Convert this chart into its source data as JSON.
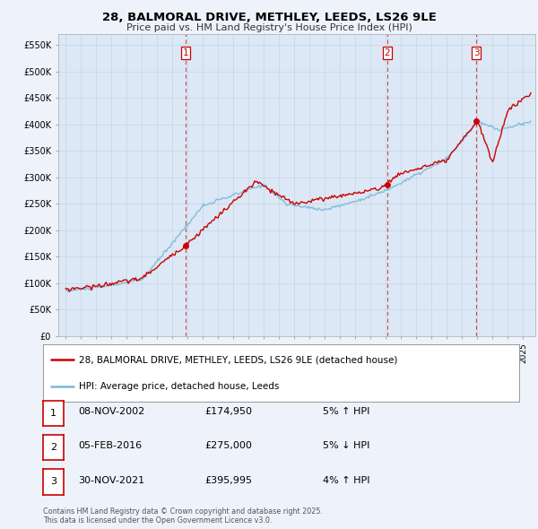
{
  "title": "28, BALMORAL DRIVE, METHLEY, LEEDS, LS26 9LE",
  "subtitle": "Price paid vs. HM Land Registry's House Price Index (HPI)",
  "ylabel_ticks": [
    "£0",
    "£50K",
    "£100K",
    "£150K",
    "£200K",
    "£250K",
    "£300K",
    "£350K",
    "£400K",
    "£450K",
    "£500K",
    "£550K"
  ],
  "ytick_values": [
    0,
    50000,
    100000,
    150000,
    200000,
    250000,
    300000,
    350000,
    400000,
    450000,
    500000,
    550000
  ],
  "ylim": [
    0,
    570000
  ],
  "bg_color": "#eef2fb",
  "plot_bg": "#dce8f5",
  "red_color": "#cc0000",
  "blue_color": "#7ab8d9",
  "grid_color": "#c8d8e8",
  "vline_color": "#cc0000",
  "purchase_markers": [
    {
      "year": 2002.85,
      "price": 174950,
      "label": "1"
    },
    {
      "year": 2016.08,
      "price": 275000,
      "label": "2"
    },
    {
      "year": 2021.92,
      "price": 395995,
      "label": "3"
    }
  ],
  "legend_line1": "28, BALMORAL DRIVE, METHLEY, LEEDS, LS26 9LE (detached house)",
  "legend_line2": "HPI: Average price, detached house, Leeds",
  "table_rows": [
    {
      "num": "1",
      "date": "08-NOV-2002",
      "price": "£174,950",
      "pct": "5% ↑ HPI"
    },
    {
      "num": "2",
      "date": "05-FEB-2016",
      "price": "£275,000",
      "pct": "5% ↓ HPI"
    },
    {
      "num": "3",
      "date": "30-NOV-2021",
      "price": "£395,995",
      "pct": "4% ↑ HPI"
    }
  ],
  "footer": "Contains HM Land Registry data © Crown copyright and database right 2025.\nThis data is licensed under the Open Government Licence v3.0."
}
